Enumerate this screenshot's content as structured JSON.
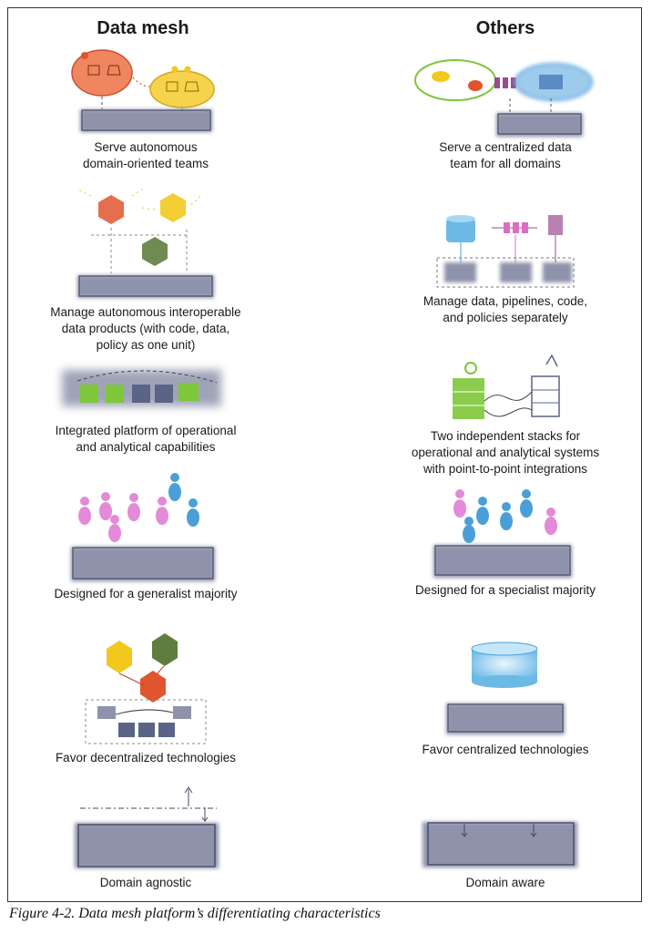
{
  "headers": {
    "left": "Data mesh",
    "right": "Others"
  },
  "rows": [
    {
      "left": "Serve autonomous\ndomain-oriented teams",
      "right": "Serve a centralized data\nteam for all domains"
    },
    {
      "left": "Manage autonomous interoperable\ndata products (with code, data,\npolicy as one unit)",
      "right": "Manage data, pipelines, code,\nand policies separately"
    },
    {
      "left": "Integrated platform of operational\nand analytical capabilities",
      "right": "Two independent stacks for\noperational and analytical systems\nwith point-to-point integrations"
    },
    {
      "left": "Designed for a generalist majority",
      "right": "Designed for a specialist majority"
    },
    {
      "left": "Favor decentralized technologies",
      "right": "Favor centralized technologies"
    },
    {
      "left": "Domain agnostic",
      "right": "Domain aware"
    }
  ],
  "figure_caption": "Figure 4-2. Data mesh platform’s differentiating characteristics",
  "colors": {
    "platform": "#8e93ab",
    "red": "#e0552f",
    "yellow": "#f2c81e",
    "green": "#6f9e42",
    "lime": "#7ec63a",
    "blue": "#4a9fd9",
    "pink": "#d86fc7",
    "purple": "#9a4b8e"
  }
}
